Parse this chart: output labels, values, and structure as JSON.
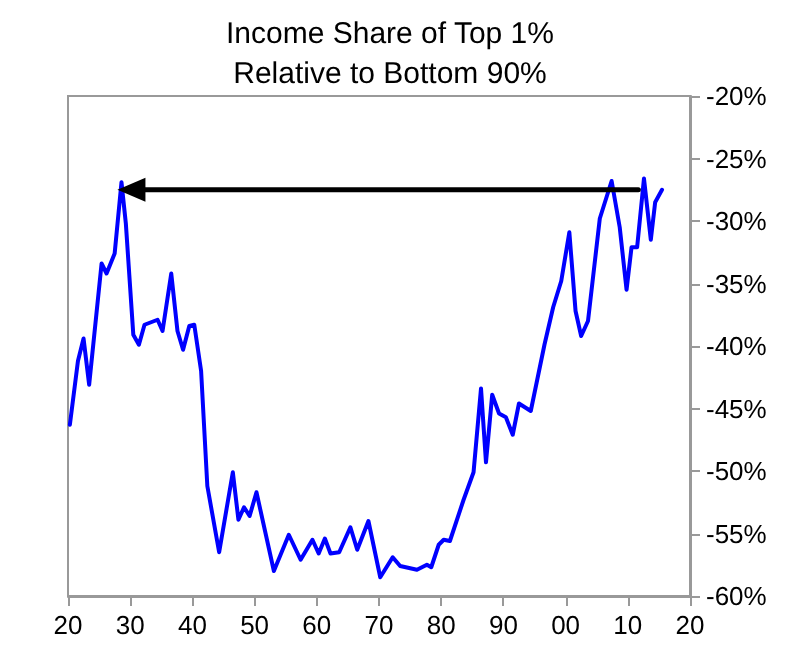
{
  "chart_data": {
    "type": "line",
    "title": "Income Share of Top 1%\nRelative to Bottom 90%",
    "series": [
      {
        "color": "#0000ff",
        "x": [
          1920.3,
          1921.6,
          1922.5,
          1923.4,
          1925.4,
          1926.2,
          1927.5,
          1928.6,
          1929.3,
          1930.5,
          1931.4,
          1932.3,
          1934.4,
          1935.2,
          1936.6,
          1937.6,
          1938.5,
          1939.5,
          1940.3,
          1941.4,
          1942.4,
          1944.3,
          1946.5,
          1947.4,
          1948.3,
          1949.2,
          1950.3,
          1953.1,
          1955.5,
          1957.4,
          1959.3,
          1960.3,
          1961.3,
          1962.2,
          1963.6,
          1965.4,
          1966.5,
          1968.3,
          1970.2,
          1972.2,
          1973.4,
          1976.1,
          1977.7,
          1978.4,
          1979.6,
          1980.4,
          1981.4,
          1983.6,
          1985.2,
          1986.4,
          1987.2,
          1988.2,
          1989.3,
          1990.4,
          1991.5,
          1992.5,
          1994.4,
          1996.6,
          1998.0,
          1999.3,
          2000.6,
          2001.6,
          2002.5,
          2003.6,
          2005.5,
          2007.4,
          2008.7,
          2009.8,
          2010.6,
          2011.5,
          2012.6,
          2013.7,
          2014.4,
          2015.5
        ],
        "values": [
          -46.3,
          -41.2,
          -39.4,
          -43.1,
          -33.4,
          -34.2,
          -32.6,
          -26.9,
          -30.2,
          -39.1,
          -39.9,
          -38.3,
          -37.9,
          -38.8,
          -34.2,
          -38.8,
          -40.3,
          -38.4,
          -38.3,
          -42.0,
          -51.2,
          -56.5,
          -50.1,
          -53.9,
          -52.9,
          -53.6,
          -51.7,
          -58.0,
          -55.1,
          -57.1,
          -55.5,
          -56.6,
          -55.4,
          -56.6,
          -56.5,
          -54.5,
          -56.3,
          -54.0,
          -58.5,
          -56.9,
          -57.6,
          -57.9,
          -57.5,
          -57.7,
          -55.9,
          -55.5,
          -55.6,
          -52.3,
          -50.1,
          -43.4,
          -49.3,
          -43.9,
          -45.4,
          -45.7,
          -47.1,
          -44.6,
          -45.2,
          -39.9,
          -36.9,
          -34.8,
          -30.9,
          -37.2,
          -39.2,
          -38.0,
          -29.8,
          -26.8,
          -30.5,
          -35.5,
          -32.1,
          -32.1,
          -26.6,
          -31.5,
          -28.5,
          -27.5
        ]
      },
      {
        "color": "#000000",
        "x": [
          2011.7,
          1930.2
        ],
        "values": [
          -27.5,
          -27.5
        ],
        "marker": "triangle"
      }
    ],
    "xlim": [
      1920,
      2020
    ],
    "xticks": [
      {
        "value": 1920,
        "label": "20"
      },
      {
        "value": 1930,
        "label": "30"
      },
      {
        "value": 1940,
        "label": "40"
      },
      {
        "value": 1950,
        "label": "50"
      },
      {
        "value": 1960,
        "label": "60"
      },
      {
        "value": 1970,
        "label": "70"
      },
      {
        "value": 1980,
        "label": "80"
      },
      {
        "value": 1990,
        "label": "90"
      },
      {
        "value": 2000,
        "label": "00"
      },
      {
        "value": 2010,
        "label": "10"
      },
      {
        "value": 2020,
        "label": "20"
      }
    ],
    "ylim": [
      -60,
      -20
    ],
    "yticks": [
      {
        "value": -60,
        "label": "-60%"
      },
      {
        "value": -55,
        "label": "-55%"
      },
      {
        "value": -50,
        "label": "-50%"
      },
      {
        "value": -45,
        "label": "-45%"
      },
      {
        "value": -40,
        "label": "-40%"
      },
      {
        "value": -35,
        "label": "-35%"
      },
      {
        "value": -30,
        "label": "-30%"
      },
      {
        "value": -25,
        "label": "-25%"
      },
      {
        "value": -20,
        "label": "-20%"
      }
    ],
    "marker": "none",
    "grid": false
  }
}
